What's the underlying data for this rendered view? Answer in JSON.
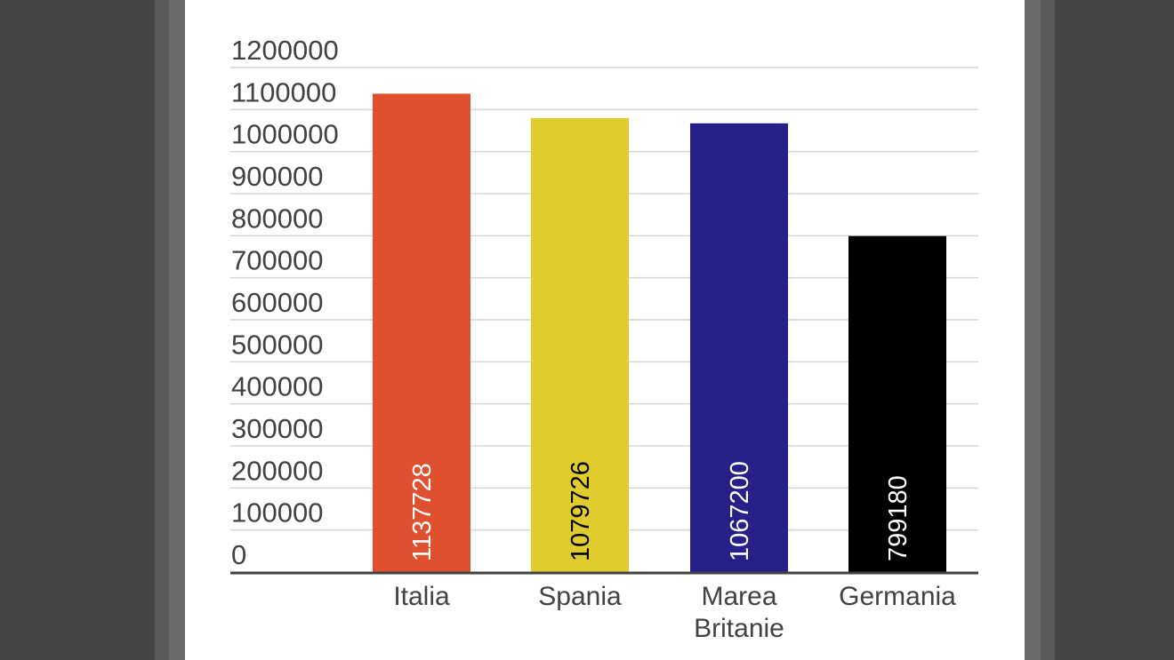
{
  "chart_data": {
    "type": "bar",
    "categories": [
      "Italia",
      "Spania",
      "Marea Britanie",
      "Germania"
    ],
    "category_label_lines": [
      [
        "Italia"
      ],
      [
        "Spania"
      ],
      [
        "Marea",
        "Britanie"
      ],
      [
        "Germania"
      ]
    ],
    "values": [
      1137728,
      1079726,
      1067200,
      799180
    ],
    "data_labels": [
      "1137728",
      "1079726",
      "1067200",
      "799180"
    ],
    "bar_colors": [
      "#e1502e",
      "#e1cc30",
      "#262089",
      "#000000"
    ],
    "data_label_colors": [
      "#ffffff",
      "#000000",
      "#ffffff",
      "#ffffff"
    ],
    "y_ticks": [
      0,
      100000,
      200000,
      300000,
      400000,
      500000,
      600000,
      700000,
      800000,
      900000,
      1000000,
      1100000,
      1200000
    ],
    "ylim": [
      0,
      1200000
    ],
    "title": "",
    "xlabel": "",
    "ylabel": "",
    "grid": true,
    "legend": "none",
    "data_label_orientation": "vertical-inside-bar-bottom",
    "colors": {
      "gridline": "#d6d6d6",
      "axis": "#424242",
      "text": "#424242",
      "background": "#ffffff",
      "frame": "#454545"
    }
  }
}
